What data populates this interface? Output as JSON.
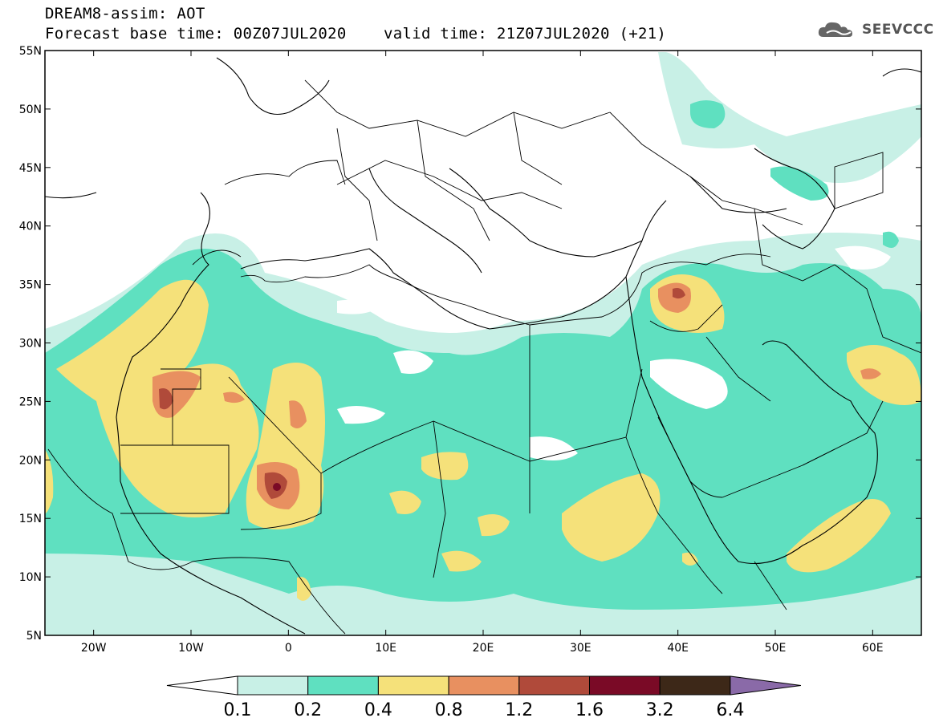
{
  "header": {
    "title": "DREAM8-assim: AOT",
    "base_time": "Forecast base time: 00Z07JUL2020",
    "valid_time": "valid time: 21Z07JUL2020 (+21)",
    "logo": "SEEVCCC"
  },
  "map": {
    "lat_labels": [
      "55N",
      "50N",
      "45N",
      "40N",
      "35N",
      "30N",
      "25N",
      "20N",
      "15N",
      "10N",
      "5N"
    ],
    "lon_labels": [
      "20W",
      "10W",
      "0",
      "10E",
      "20E",
      "30E",
      "40E",
      "50E",
      "60E"
    ],
    "extent": {
      "lon_min": -25,
      "lon_max": 65,
      "lat_min": 5,
      "lat_max": 55
    }
  },
  "colorbar": {
    "labels": [
      "0.1",
      "0.2",
      "0.4",
      "0.8",
      "1.2",
      "1.6",
      "3.2",
      "6.4"
    ],
    "colors": [
      "#c8f0e6",
      "#5fe0c0",
      "#f5e17a",
      "#e89060",
      "#b04a3a",
      "#7a0a26",
      "#3d2818",
      "#8a6aa8"
    ]
  }
}
